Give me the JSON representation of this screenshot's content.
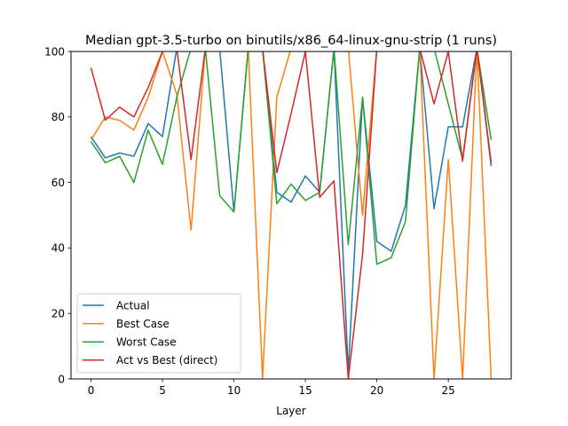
{
  "chart_data": {
    "type": "line",
    "title": "Median gpt-3.5-turbo on binutils/x86_64-linux-gnu-strip (1 runs)",
    "xlabel": "Layer",
    "ylabel": "",
    "xlim": [
      -1.4,
      29.4
    ],
    "ylim": [
      0,
      100
    ],
    "xticks": [
      0,
      5,
      10,
      15,
      20,
      25
    ],
    "yticks": [
      0,
      20,
      40,
      60,
      80,
      100
    ],
    "grid": false,
    "legend_position": "lower-left",
    "x": [
      0,
      1,
      2,
      3,
      4,
      5,
      6,
      7,
      8,
      9,
      10,
      11,
      12,
      13,
      14,
      15,
      16,
      17,
      18,
      19,
      20,
      21,
      22,
      23,
      24,
      25,
      26,
      27,
      28
    ],
    "series": [
      {
        "name": "Actual",
        "color": "#1f77b4",
        "values": [
          74,
          67.5,
          69,
          68,
          78,
          74,
          101,
          101,
          101,
          101,
          51,
          101,
          101,
          57,
          54,
          62,
          57,
          101,
          2,
          86,
          42,
          39,
          53,
          101,
          52,
          77,
          77,
          101,
          65
        ]
      },
      {
        "name": "Best Case",
        "color": "#ff7f0e",
        "values": [
          73,
          80,
          79,
          76,
          86,
          100,
          87,
          45.5,
          101,
          101,
          101,
          101,
          0,
          86,
          101,
          101,
          101,
          101,
          101,
          50,
          101,
          101,
          101,
          101,
          0,
          67,
          0,
          101,
          0
        ]
      },
      {
        "name": "Worst Case",
        "color": "#2ca02c",
        "values": [
          72.5,
          66,
          68,
          60,
          76,
          65.5,
          86,
          101,
          101,
          56,
          51,
          101,
          101,
          53.5,
          59.5,
          54.5,
          57,
          101,
          41,
          86,
          35,
          37,
          48,
          101,
          101,
          84,
          67,
          101,
          73
        ]
      },
      {
        "name": "Act vs Best (direct)",
        "color": "#d62728",
        "values": [
          95,
          79,
          83,
          80,
          89,
          100,
          101,
          67,
          101,
          101,
          101,
          101,
          101,
          63,
          81,
          100,
          55.5,
          60.5,
          0,
          38,
          101,
          101,
          101,
          101,
          84,
          100,
          66.5,
          101,
          66
        ]
      }
    ]
  }
}
